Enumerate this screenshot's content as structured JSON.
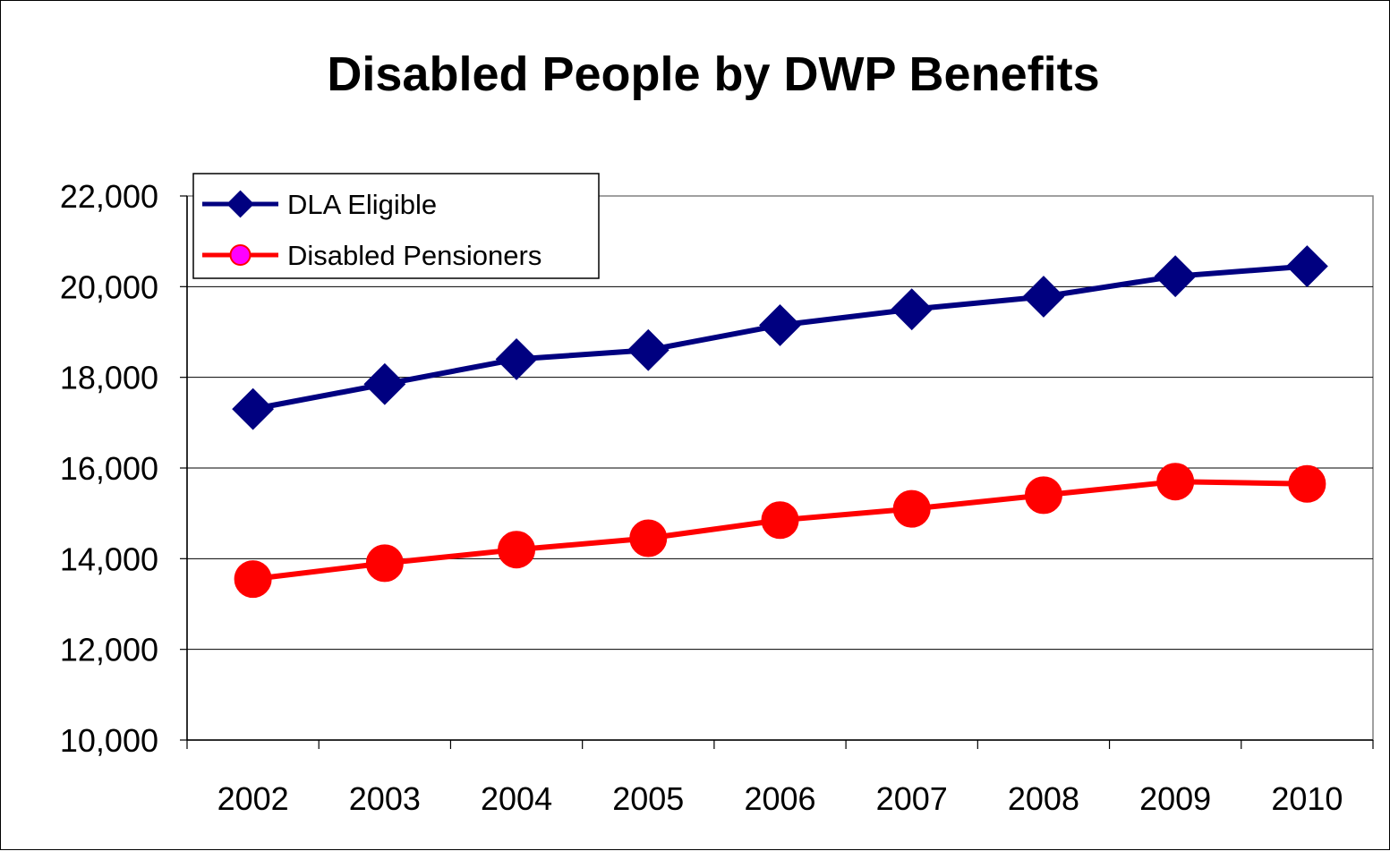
{
  "chart_data": {
    "type": "line",
    "title": "Disabled People by DWP Benefits",
    "xlabel": "",
    "ylabel": "",
    "categories": [
      "2002",
      "2003",
      "2004",
      "2005",
      "2006",
      "2007",
      "2008",
      "2009",
      "2010"
    ],
    "series": [
      {
        "name": "DLA Eligible",
        "color": "#000080",
        "marker": "diamond",
        "values": [
          17300,
          17850,
          18400,
          18600,
          19150,
          19500,
          19780,
          20230,
          20450
        ]
      },
      {
        "name": "Disabled Pensioners",
        "color": "#ff0000",
        "marker": "circle",
        "legend_marker_fill": "#ff00ff",
        "values": [
          13550,
          13900,
          14200,
          14450,
          14850,
          15100,
          15400,
          15700,
          15650
        ]
      }
    ],
    "ylim": [
      10000,
      22000
    ],
    "y_ticks": [
      "10,000",
      "12,000",
      "14,000",
      "16,000",
      "18,000",
      "20,000",
      "22,000"
    ],
    "grid": "horizontal",
    "legend_position": "top-left",
    "plot_border_color": "#808080"
  }
}
